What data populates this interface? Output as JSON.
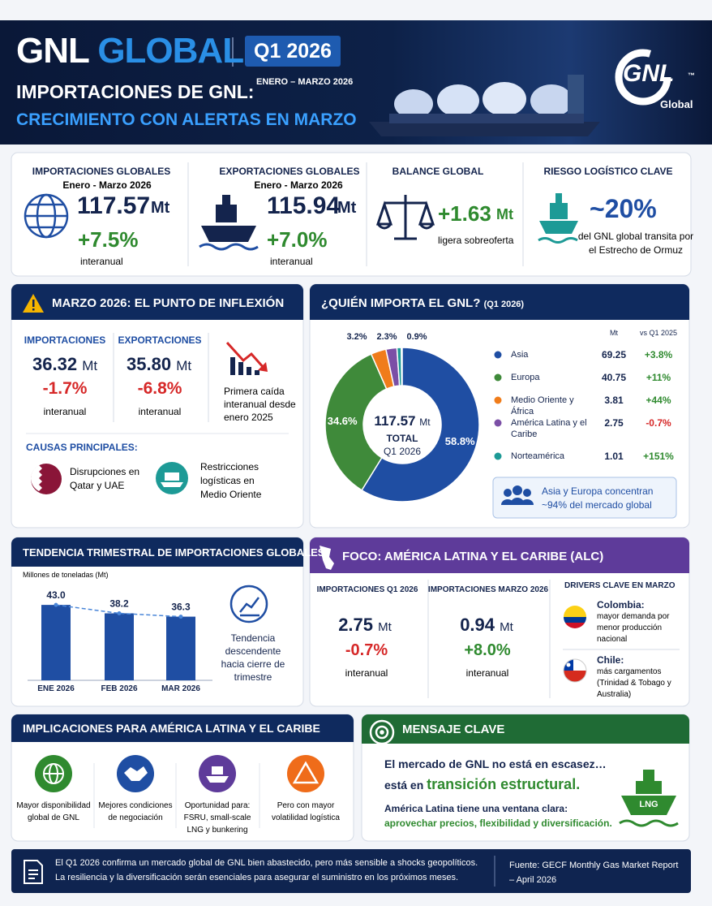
{
  "header": {
    "title_a": "GNL",
    "title_b": "GLOBAL",
    "quarter": "Q1 2026",
    "period": "ENERO – MARZO 2026",
    "subtitle_1": "IMPORTACIONES DE GNL:",
    "subtitle_2": "CRECIMIENTO CON ALERTAS EN MARZO",
    "logo": "GNL",
    "logo_sub": "Global",
    "logo_mark": "™"
  },
  "kpis": [
    {
      "title": "IMPORTACIONES GLOBALES",
      "period": "Enero - Marzo 2026",
      "value": "117.57",
      "unit": "Mt",
      "change": "+7.5%",
      "note": "interanual"
    },
    {
      "title": "EXPORTACIONES GLOBALES",
      "period": "Enero - Marzo 2026",
      "value": "115.94",
      "unit": "Mt",
      "change": "+7.0%",
      "note": "interanual"
    },
    {
      "title": "BALANCE GLOBAL",
      "value": "+1.63",
      "unit": "Mt",
      "note": "ligera sobreoferta"
    },
    {
      "title": "RIESGO LOGÍSTICO CLAVE",
      "value": "~20%",
      "note": "del GNL global transita por el Estrecho de Ormuz"
    }
  ],
  "march": {
    "title": "MARZO 2026: EL PUNTO DE INFLEXIÓN",
    "items": [
      {
        "label": "IMPORTACIONES",
        "value": "36.32",
        "unit": "Mt",
        "change": "-1.7%",
        "note": "interanual"
      },
      {
        "label": "EXPORTACIONES",
        "value": "35.80",
        "unit": "Mt",
        "change": "-6.8%",
        "note": "interanual"
      }
    ],
    "trend_note": "Primera caída interanual desde enero 2025",
    "causes_title": "CAUSAS PRINCIPALES:",
    "causes": [
      "Disrupciones en Qatar y UAE",
      "Restricciones logísticas en Medio Oriente"
    ]
  },
  "chart_data": [
    {
      "type": "pie",
      "donut": true,
      "title": "¿QUIÉN IMPORTA EL GNL?",
      "title_period": "(Q1 2026)",
      "categories": [
        "Asia",
        "Europa",
        "Medio Oriente y África",
        "América Latina y el Caribe",
        "Norteamérica"
      ],
      "values": [
        58.8,
        34.6,
        3.2,
        2.3,
        0.9
      ],
      "value_labels": [
        "58.8%",
        "34.6%",
        "3.2%",
        "2.3%",
        "0.9%"
      ],
      "colors": [
        "#1f4ea3",
        "#3f8a3a",
        "#f07c1a",
        "#7b4fa6",
        "#1d9a96"
      ],
      "center_value": "117.57",
      "center_unit": "Mt",
      "center_label": "TOTAL",
      "center_period": "Q1 2026",
      "columns": [
        "Mt",
        "vs Q1 2025"
      ],
      "mt": [
        69.25,
        40.75,
        3.81,
        2.75,
        1.01
      ],
      "yoy": [
        "+3.8%",
        "+11%",
        "+44%",
        "-0.7%",
        "+151%"
      ],
      "callout": "Asia y Europa concentran ~94% del mercado global"
    },
    {
      "type": "bar",
      "title": "TENDENCIA TRIMESTRAL DE IMPORTACIONES GLOBALES",
      "y_label": "Millones de toneladas (Mt)",
      "categories": [
        "ENE 2026",
        "FEB 2026",
        "MAR 2026"
      ],
      "values": [
        43.0,
        38.2,
        36.3
      ],
      "value_labels": [
        "43.0",
        "38.2",
        "36.3"
      ],
      "color": "#1f4ea3",
      "ylim": [
        0,
        50
      ],
      "trend_line": true,
      "annotation": "Tendencia descendente hacia cierre de trimestre"
    }
  ],
  "alc": {
    "title": "FOCO: AMÉRICA LATINA Y EL CARIBE (ALC)",
    "items": [
      {
        "label": "IMPORTACIONES Q1 2026",
        "value": "2.75",
        "unit": "Mt",
        "change": "-0.7%",
        "note": "interanual"
      },
      {
        "label": "IMPORTACIONES MARZO 2026",
        "value": "0.94",
        "unit": "Mt",
        "change": "+8.0%",
        "note": "interanual"
      }
    ],
    "drivers_title": "DRIVERS CLAVE EN MARZO",
    "drivers": [
      {
        "country": "Colombia:",
        "text": "mayor demanda por menor producción nacional"
      },
      {
        "country": "Chile:",
        "text": "más cargamentos (Trinidad & Tobago y Australia)"
      }
    ]
  },
  "implications": {
    "title": "IMPLICACIONES PARA AMÉRICA LATINA Y EL CARIBE",
    "items": [
      "Mayor disponibilidad global de GNL",
      "Mejores condiciones de negociación",
      "Oportunidad para: FSRU, small-scale LNG y bunkering",
      "Pero con mayor volatilidad logística"
    ]
  },
  "message": {
    "title": "MENSAJE CLAVE",
    "line_1": "El mercado de GNL no está en escasez…",
    "line_2": "está en",
    "highlight": "transición estructural.",
    "line_3": "América Latina tiene una ventana clara:",
    "line_4": "aprovechar precios, flexibilidad y diversificación.",
    "icon_label": "LNG"
  },
  "footer": {
    "text_1": "El Q1 2026 confirma un mercado global de GNL bien abastecido, pero más sensible a shocks geopolíticos.",
    "text_2": "La resiliencia y la diversificación serán esenciales para asegurar el suministro en los próximos meses.",
    "source": "Fuente: GECF Monthly Gas Market Report – April 2026"
  }
}
